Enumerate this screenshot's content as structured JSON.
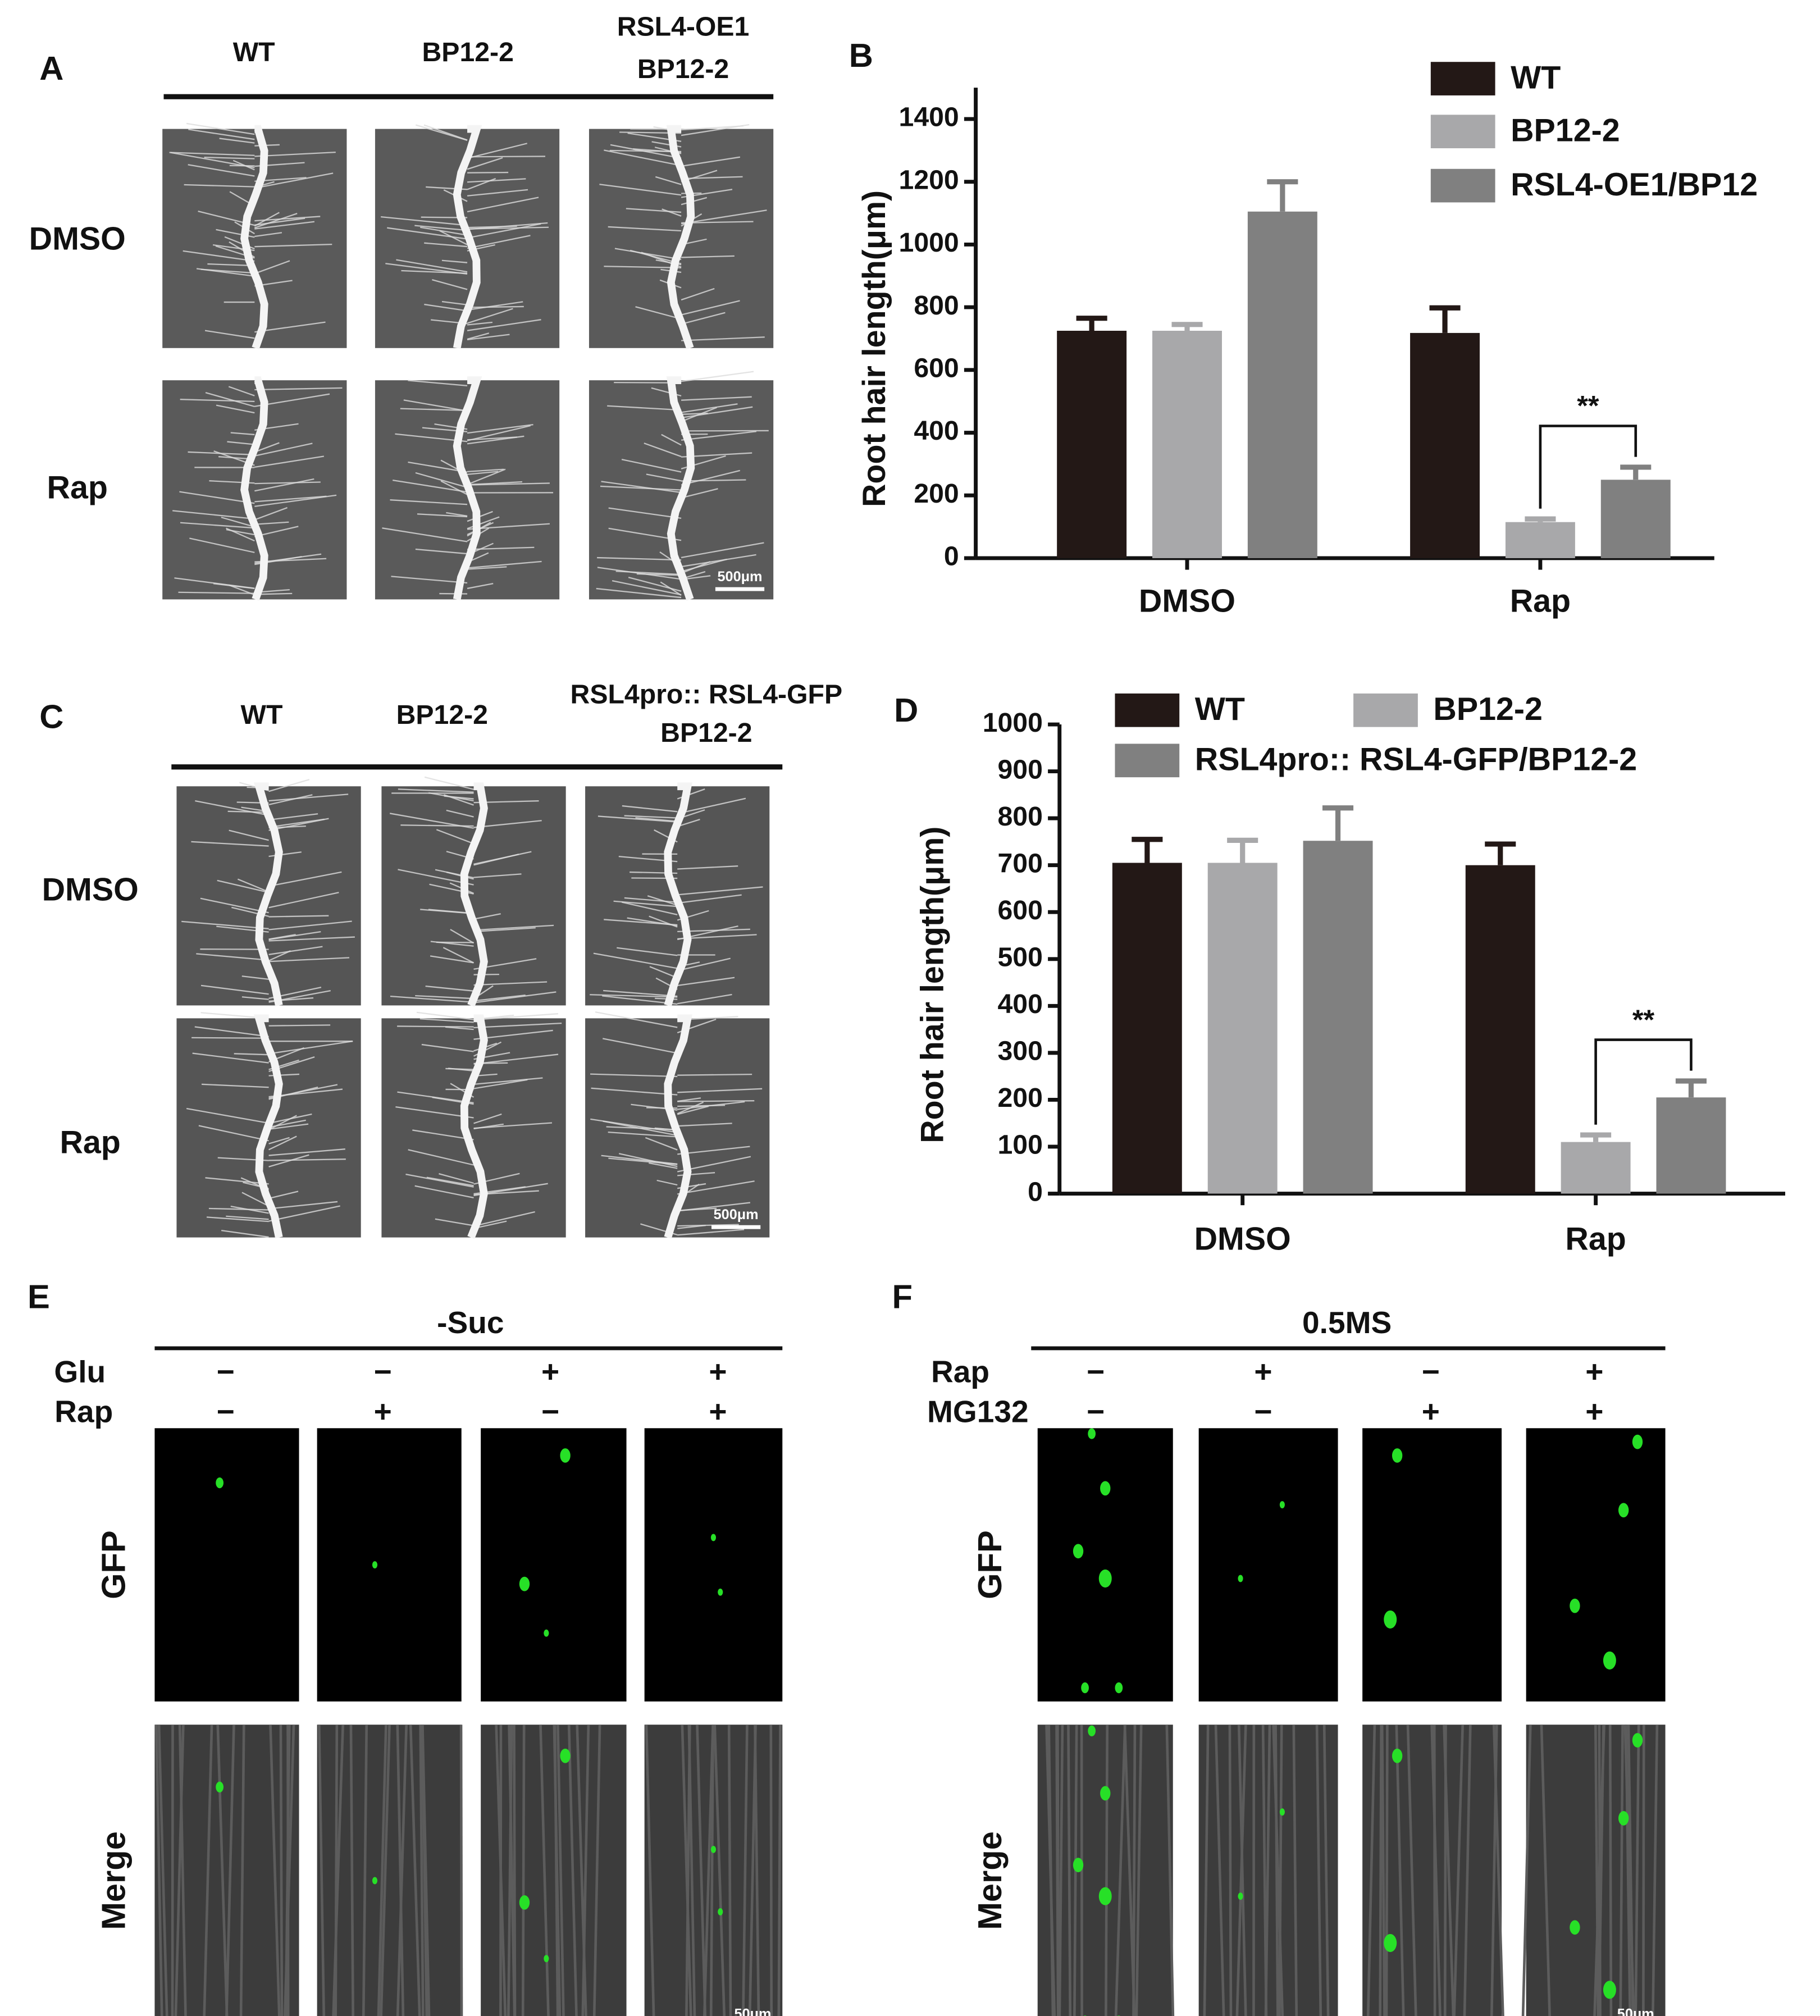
{
  "panel_a": {
    "label": "A",
    "columns": [
      [
        "WT"
      ],
      [
        "BP12-2"
      ],
      [
        "RSL4-OE1",
        "BP12-2"
      ]
    ],
    "rows": [
      "DMSO",
      "Rap"
    ],
    "scale_bar": "500μm"
  },
  "panel_c": {
    "label": "C",
    "columns": [
      [
        "WT"
      ],
      [
        "BP12-2"
      ],
      [
        "RSL4pro:: RSL4-GFP",
        "BP12-2"
      ]
    ],
    "rows": [
      "DMSO",
      "Rap"
    ],
    "scale_bar": "500μm"
  },
  "panel_e": {
    "label": "E",
    "title": "-Suc",
    "treatments": [
      {
        "name": "Glu",
        "signs": [
          "−",
          "−",
          "+",
          "+"
        ]
      },
      {
        "name": "Rap",
        "signs": [
          "−",
          "+",
          "−",
          "+"
        ]
      }
    ],
    "rows": [
      "GFP",
      "Merge"
    ],
    "scale_bar": "50μm"
  },
  "panel_f": {
    "label": "F",
    "title": "0.5MS",
    "treatments": [
      {
        "name": "Rap",
        "signs": [
          "−",
          "+",
          "−",
          "+"
        ]
      },
      {
        "name": "MG132",
        "signs": [
          "−",
          "−",
          "+",
          "+"
        ]
      }
    ],
    "rows": [
      "GFP",
      "Merge"
    ],
    "scale_bar": "50μm"
  },
  "chart_data": [
    {
      "type": "bar",
      "label": "B",
      "y_label": "Root hair length(μm)",
      "categories": [
        "DMSO",
        "Rap"
      ],
      "series": [
        {
          "name": "WT",
          "color": "#231816",
          "values": [
            725,
            718
          ],
          "errors": [
            40,
            80
          ]
        },
        {
          "name": "BP12-2",
          "color": "#a8a8aa",
          "values": [
            725,
            115
          ],
          "errors": [
            20,
            10
          ]
        },
        {
          "name": "RSL4-OE1/BP12",
          "color": "#808080",
          "values": [
            1105,
            250
          ],
          "errors": [
            95,
            40
          ]
        }
      ],
      "ylim": [
        0,
        1500
      ],
      "yticks": [
        0,
        200,
        400,
        600,
        800,
        1000,
        1200,
        1400
      ],
      "legend": "top-right",
      "annotations": [
        "**"
      ]
    },
    {
      "type": "bar",
      "label": "D",
      "y_label": "Root hair length(μm)",
      "categories": [
        "DMSO",
        "Rap"
      ],
      "series": [
        {
          "name": "WT",
          "color": "#231816",
          "values": [
            705,
            700
          ],
          "errors": [
            50,
            45
          ]
        },
        {
          "name": "BP12-2",
          "color": "#a8a8aa",
          "values": [
            705,
            110
          ],
          "errors": [
            48,
            15
          ]
        },
        {
          "name": "RSL4pro:: RSL4-GFP/BP12-2",
          "color": "#808080",
          "values": [
            752,
            205
          ],
          "errors": [
            70,
            35
          ]
        }
      ],
      "ylim": [
        0,
        1000
      ],
      "yticks": [
        0,
        100,
        200,
        300,
        400,
        500,
        600,
        700,
        800,
        900,
        1000
      ],
      "legend": "top",
      "annotations": [
        "**"
      ]
    }
  ]
}
